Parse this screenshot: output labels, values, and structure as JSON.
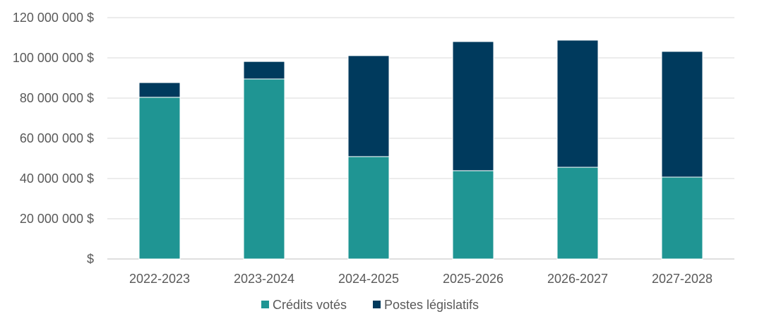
{
  "chart_data": {
    "type": "bar",
    "stacked": true,
    "categories": [
      "2022-2023",
      "2023-2024",
      "2024-2025",
      "2025-2026",
      "2026-2027",
      "2027-2028"
    ],
    "series": [
      {
        "name": "Crédits votés",
        "color": "#1f9593",
        "values": [
          80400000,
          89500000,
          50900000,
          43900000,
          45600000,
          40700000
        ]
      },
      {
        "name": "Postes législatifs",
        "color": "#003a5d",
        "values": [
          7300000,
          8700000,
          50200000,
          64200000,
          63200000,
          62500000
        ]
      }
    ],
    "ylim": [
      0,
      120000000
    ],
    "yticks": [
      0,
      20000000,
      40000000,
      60000000,
      80000000,
      100000000,
      120000000
    ],
    "ytick_labels": [
      "$",
      "20 000 000 $",
      "40 000 000 $",
      "60 000 000 $",
      "80 000 000 $",
      "100 000 000 $",
      "120 000 000 $"
    ],
    "grid": true,
    "legend": "bottom"
  }
}
